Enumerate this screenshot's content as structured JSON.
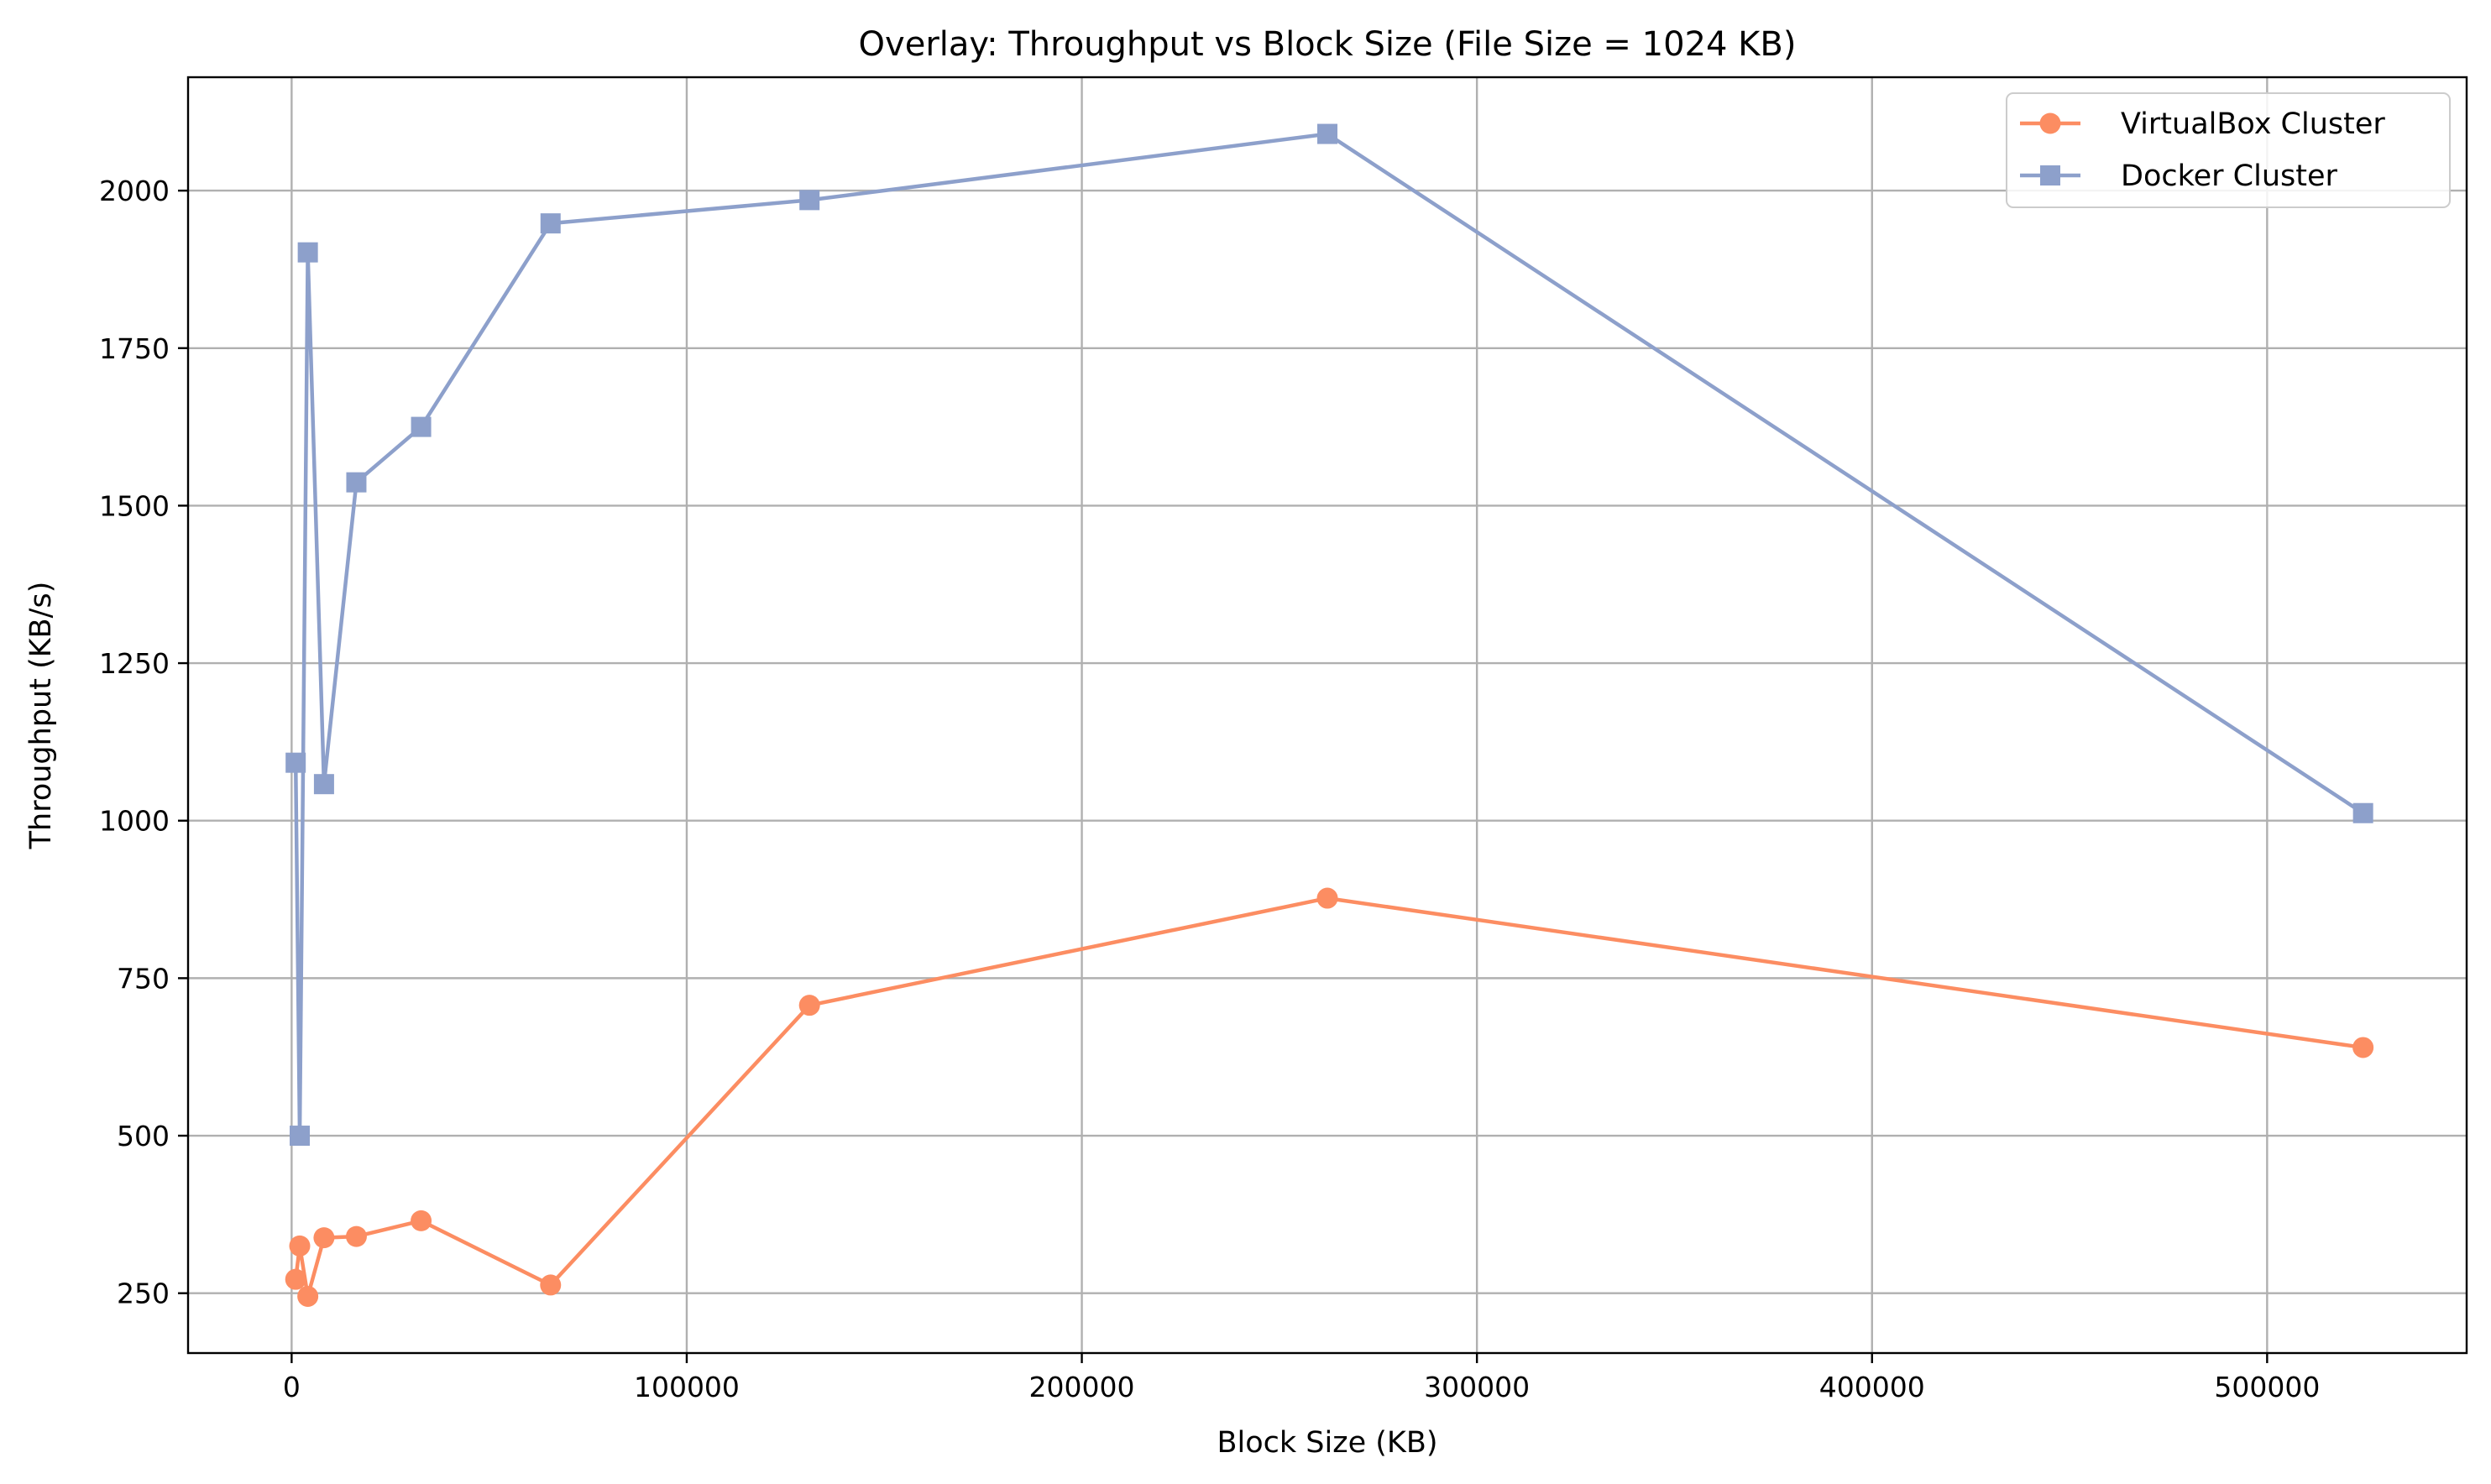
{
  "chart_data": {
    "type": "line",
    "title": "Overlay: Throughput vs Block Size (File Size = 1024 KB)",
    "xlabel": "Block Size (KB)",
    "ylabel": "Throughput (KB/s)",
    "xlim": [
      -26214,
      550502
    ],
    "ylim": [
      155,
      2180
    ],
    "xticks": [
      0,
      100000,
      200000,
      300000,
      400000,
      500000
    ],
    "xtick_labels": [
      "0",
      "100000",
      "200000",
      "300000",
      "400000",
      "500000"
    ],
    "yticks": [
      250,
      500,
      750,
      1000,
      1250,
      1500,
      1750,
      2000
    ],
    "ytick_labels": [
      "250",
      "500",
      "750",
      "1000",
      "1250",
      "1500",
      "1750",
      "2000"
    ],
    "grid": true,
    "legend_position": "top-right",
    "x": [
      1024,
      2048,
      4096,
      8192,
      16384,
      32768,
      65536,
      131072,
      262144,
      524288
    ],
    "series": [
      {
        "name": "VirtualBox Cluster",
        "marker": "circle",
        "color": "#fc8d62",
        "values": [
          272,
          325,
          245,
          338,
          340,
          365,
          263,
          707,
          877,
          640
        ]
      },
      {
        "name": "Docker Cluster",
        "marker": "square",
        "color": "#8da0cb",
        "values": [
          1092,
          500,
          1902,
          1058,
          1537,
          1625,
          1948,
          1985,
          2090,
          1012
        ]
      }
    ]
  }
}
